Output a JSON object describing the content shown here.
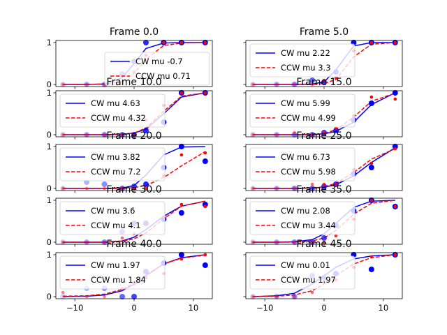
{
  "chart_data": {
    "type": "line",
    "xticks": [
      -10,
      0,
      10
    ],
    "yticks": [
      0,
      1
    ],
    "xlim": [
      -13.2,
      13.2
    ],
    "ylim": [
      -0.05,
      1.05
    ],
    "series_colors": {
      "cw": "#0000ff",
      "ccw": "#ff0000"
    },
    "x": [
      -12,
      -8,
      -5,
      -2,
      0,
      2,
      5,
      8,
      12
    ],
    "panels": [
      {
        "title": "Frame 0.0",
        "legend_loc": "lower-right",
        "cw_label": "CW mu -0.7",
        "ccw_label": "CCW mu 0.71",
        "cw_line": [
          0,
          0,
          0.01,
          0.16,
          0.5,
          0.86,
          0.99,
          1,
          1
        ],
        "ccw_line": [
          0,
          0,
          0.01,
          0.07,
          0.27,
          0.6,
          0.93,
          0.99,
          1
        ],
        "cw_points": [
          0,
          0,
          0,
          0.25,
          0.55,
          1,
          1,
          1,
          1
        ],
        "ccw_points": [
          0,
          0,
          0,
          0.05,
          0.3,
          0.7,
          1,
          1,
          1
        ]
      },
      {
        "title": "Frame 5.0",
        "legend_loc": "upper-left",
        "cw_label": "CW mu 2.22",
        "ccw_label": "CCW mu 3.3",
        "cw_line": [
          0,
          0,
          0,
          0.01,
          0.06,
          0.35,
          0.92,
          1,
          1
        ],
        "ccw_line": [
          0,
          0,
          0,
          0,
          0.02,
          0.12,
          0.66,
          0.96,
          1
        ],
        "cw_points": [
          0,
          0,
          0,
          0.1,
          0.05,
          0.3,
          1,
          1,
          1
        ],
        "ccw_points": [
          0,
          0,
          0,
          0,
          0.1,
          0.15,
          0.8,
          1,
          1
        ]
      },
      {
        "title": "Frame 10.0",
        "legend_loc": "upper-left",
        "cw_label": "CW mu 4.63",
        "ccw_label": "CCW mu 4.32",
        "cw_line": [
          0,
          0,
          0,
          0.01,
          0.04,
          0.13,
          0.5,
          0.9,
          1
        ],
        "ccw_line": [
          0,
          0,
          0,
          0.01,
          0.04,
          0.16,
          0.56,
          0.92,
          1
        ],
        "cw_points": [
          0,
          0,
          0,
          0,
          0,
          0.1,
          0.3,
          1,
          1
        ],
        "ccw_points": [
          0,
          0,
          0,
          0,
          0,
          0.35,
          0.7,
          1,
          1
        ]
      },
      {
        "title": "Frame 15.0",
        "legend_loc": "upper-left",
        "cw_label": "CW mu 5.99",
        "ccw_label": "CCW mu 4.99",
        "cw_line": [
          0,
          0,
          0,
          0,
          0.02,
          0.08,
          0.3,
          0.72,
          1
        ],
        "ccw_line": [
          0,
          0,
          0,
          0,
          0.03,
          0.12,
          0.42,
          0.8,
          0.99
        ],
        "cw_points": [
          0,
          0,
          0,
          0,
          0.05,
          0.1,
          0.35,
          0.75,
          1
        ],
        "ccw_points": [
          0,
          0,
          0.05,
          0,
          0.05,
          0.15,
          0.45,
          0.9,
          0.85
        ]
      },
      {
        "title": "Frame 20.0",
        "legend_loc": "upper-left",
        "cw_label": "CW mu 3.82",
        "ccw_label": "CCW mu 7.2",
        "cw_line": [
          0,
          0,
          0,
          0.01,
          0.07,
          0.32,
          0.8,
          0.99,
          1
        ],
        "ccw_line": [
          0,
          0,
          0,
          0,
          0.02,
          0.07,
          0.26,
          0.54,
          0.88
        ],
        "cw_points": [
          0,
          0.15,
          0.1,
          0,
          0.05,
          0.1,
          0.5,
          1,
          0.65
        ],
        "ccw_points": [
          0,
          0,
          0,
          0,
          0,
          0,
          0.3,
          0.8,
          0.85
        ]
      },
      {
        "title": "Frame 25.0",
        "legend_loc": "upper-left",
        "cw_label": "CW mu 6.73",
        "ccw_label": "CCW mu 5.98",
        "cw_line": [
          0,
          0,
          0,
          0.01,
          0.03,
          0.09,
          0.3,
          0.62,
          0.97
        ],
        "ccw_line": [
          0,
          0,
          0,
          0.01,
          0.04,
          0.12,
          0.38,
          0.7,
          0.95
        ],
        "cw_points": [
          0,
          0,
          0,
          0,
          0.05,
          0.1,
          0.35,
          0.5,
          1
        ],
        "ccw_points": [
          0,
          0,
          0,
          0.1,
          0.1,
          0.1,
          0.45,
          0.6,
          0.95
        ]
      },
      {
        "title": "Frame 30.0",
        "legend_loc": "upper-left",
        "cw_label": "CW mu 3.6",
        "ccw_label": "CCW mu 4.1",
        "cw_line": [
          0,
          0,
          0,
          0.03,
          0.12,
          0.3,
          0.62,
          0.86,
          0.98
        ],
        "ccw_line": [
          0,
          0,
          0,
          0.02,
          0.08,
          0.22,
          0.56,
          0.86,
          0.98
        ],
        "cw_points": [
          0,
          0,
          0,
          0.25,
          0.45,
          0.45,
          0.55,
          0.7,
          0.9
        ],
        "ccw_points": [
          0,
          0,
          0,
          0.1,
          0.2,
          0.45,
          0.6,
          0.9,
          0.85
        ]
      },
      {
        "title": "Frame 35.0",
        "legend_loc": "upper-left",
        "cw_label": "CW mu 2.08",
        "ccw_label": "CCW mu 3.44",
        "cw_line": [
          0,
          0,
          0.01,
          0.06,
          0.2,
          0.45,
          0.83,
          0.98,
          1
        ],
        "ccw_line": [
          0,
          0,
          0,
          0.03,
          0.1,
          0.28,
          0.67,
          0.93,
          1
        ],
        "cw_points": [
          0,
          0,
          0,
          0,
          0.1,
          0.4,
          0.75,
          1,
          0.85
        ],
        "ccw_points": [
          0,
          0,
          0,
          0,
          0,
          0.15,
          0.55,
          1,
          0.85
        ]
      },
      {
        "title": "Frame 40.0",
        "legend_loc": "upper-left",
        "cw_label": "CW mu 1.97",
        "ccw_label": "CCW mu 1.84",
        "cw_line": [
          0,
          0.01,
          0.04,
          0.14,
          0.3,
          0.5,
          0.78,
          0.93,
          1
        ],
        "ccw_line": [
          0.01,
          0.02,
          0.06,
          0.17,
          0.32,
          0.52,
          0.78,
          0.92,
          0.99
        ],
        "cw_points": [
          0,
          0.2,
          0.2,
          0,
          0,
          0.6,
          0.8,
          1,
          0.75
        ],
        "ccw_points": [
          0.1,
          0,
          0,
          0.2,
          0.3,
          0.45,
          0.55,
          0.9,
          1
        ]
      },
      {
        "title": "Frame 45.0",
        "legend_loc": "upper-left",
        "cw_label": "CW mu 0.01",
        "ccw_label": "CCW mu 1.97",
        "cw_line": [
          0,
          0.02,
          0.08,
          0.3,
          0.5,
          0.7,
          0.9,
          0.97,
          1
        ],
        "ccw_line": [
          0,
          0.01,
          0.04,
          0.14,
          0.3,
          0.5,
          0.78,
          0.93,
          1
        ],
        "cw_points": [
          0,
          0,
          0,
          0.5,
          0.45,
          0.55,
          1,
          0.65,
          1
        ],
        "ccw_points": [
          0,
          0,
          0,
          0.1,
          0.35,
          0.4,
          0.7,
          0.95,
          1
        ]
      }
    ]
  }
}
